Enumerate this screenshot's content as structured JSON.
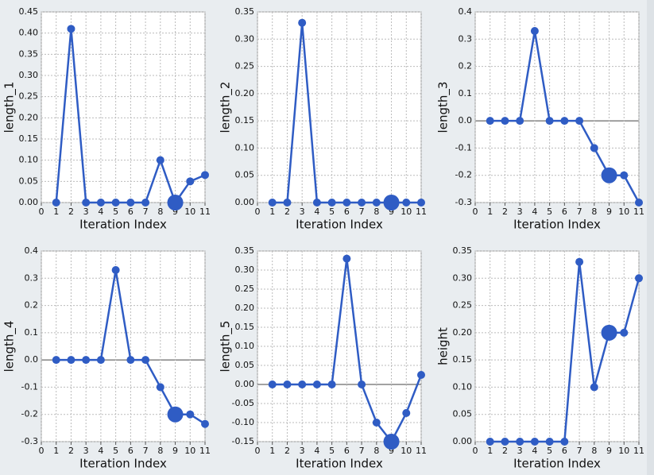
{
  "chart_data": [
    {
      "type": "line",
      "ylabel": "length_1",
      "xlabel": "Iteration Index",
      "color": "#2f5cc4",
      "grid": true,
      "highlight_x": 9,
      "x": [
        1,
        2,
        3,
        4,
        5,
        6,
        7,
        8,
        9,
        10,
        11
      ],
      "values": [
        0,
        0.41,
        0,
        0,
        0,
        0,
        0,
        0.1,
        0,
        0.05,
        0.065
      ],
      "xlim": [
        0,
        11
      ],
      "xticks": [
        0,
        1,
        2,
        3,
        4,
        5,
        6,
        7,
        8,
        9,
        10,
        11
      ],
      "ylim": [
        0,
        0.45
      ],
      "yticks": [
        {
          "value": 0,
          "label": "0.00"
        },
        {
          "value": 0.05,
          "label": "0.05"
        },
        {
          "value": 0.1,
          "label": "0.10"
        },
        {
          "value": 0.15,
          "label": "0.15"
        },
        {
          "value": 0.2,
          "label": "0.20"
        },
        {
          "value": 0.25,
          "label": "0.25"
        },
        {
          "value": 0.3,
          "label": "0.30"
        },
        {
          "value": 0.35,
          "label": "0.35"
        },
        {
          "value": 0.4,
          "label": "0.40"
        },
        {
          "value": 0.45,
          "label": "0.45"
        }
      ]
    },
    {
      "type": "line",
      "ylabel": "length_2",
      "xlabel": "Iteration Index",
      "color": "#2f5cc4",
      "grid": true,
      "highlight_x": 9,
      "x": [
        1,
        2,
        3,
        4,
        5,
        6,
        7,
        8,
        9,
        10,
        11
      ],
      "values": [
        0,
        0,
        0.33,
        0,
        0,
        0,
        0,
        0,
        0,
        0,
        0
      ],
      "xlim": [
        0,
        11
      ],
      "xticks": [
        0,
        1,
        2,
        3,
        4,
        5,
        6,
        7,
        8,
        9,
        10,
        11
      ],
      "ylim": [
        0,
        0.35
      ],
      "yticks": [
        {
          "value": 0,
          "label": "0.00"
        },
        {
          "value": 0.05,
          "label": "0.05"
        },
        {
          "value": 0.1,
          "label": "0.10"
        },
        {
          "value": 0.15,
          "label": "0.15"
        },
        {
          "value": 0.2,
          "label": "0.20"
        },
        {
          "value": 0.25,
          "label": "0.25"
        },
        {
          "value": 0.3,
          "label": "0.30"
        },
        {
          "value": 0.35,
          "label": "0.35"
        }
      ]
    },
    {
      "type": "line",
      "ylabel": "length_3",
      "xlabel": "Iteration Index",
      "color": "#2f5cc4",
      "grid": true,
      "highlight_x": 9,
      "x": [
        1,
        2,
        3,
        4,
        5,
        6,
        7,
        8,
        9,
        10,
        11
      ],
      "values": [
        0,
        0,
        0,
        0.33,
        0,
        0,
        0,
        -0.1,
        -0.2,
        -0.2,
        -0.3
      ],
      "xlim": [
        0,
        11
      ],
      "xticks": [
        0,
        1,
        2,
        3,
        4,
        5,
        6,
        7,
        8,
        9,
        10,
        11
      ],
      "ylim": [
        -0.3,
        0.4
      ],
      "yticks": [
        -0.3,
        -0.2,
        -0.1,
        {
          "value": 0,
          "label": "0.0"
        },
        0.1,
        0.2,
        0.3,
        0.4
      ]
    },
    {
      "type": "line",
      "ylabel": "length_4",
      "xlabel": "Iteration Index",
      "color": "#2f5cc4",
      "grid": true,
      "highlight_x": 9,
      "x": [
        1,
        2,
        3,
        4,
        5,
        6,
        7,
        8,
        9,
        10,
        11
      ],
      "values": [
        0,
        0,
        0,
        0,
        0.33,
        0,
        0,
        -0.1,
        -0.2,
        -0.2,
        -0.235
      ],
      "xlim": [
        0,
        11
      ],
      "xticks": [
        0,
        1,
        2,
        3,
        4,
        5,
        6,
        7,
        8,
        9,
        10,
        11
      ],
      "ylim": [
        -0.3,
        0.4
      ],
      "yticks": [
        -0.3,
        -0.2,
        -0.1,
        {
          "value": 0,
          "label": "0.0"
        },
        0.1,
        0.2,
        0.3,
        0.4
      ]
    },
    {
      "type": "line",
      "ylabel": "length_5",
      "xlabel": "Iteration Index",
      "color": "#2f5cc4",
      "grid": true,
      "highlight_x": 9,
      "x": [
        1,
        2,
        3,
        4,
        5,
        6,
        7,
        8,
        9,
        10,
        11
      ],
      "values": [
        0,
        0,
        0,
        0,
        0,
        0.33,
        0,
        -0.1,
        -0.15,
        -0.075,
        0.025
      ],
      "xlim": [
        0,
        11
      ],
      "xticks": [
        0,
        1,
        2,
        3,
        4,
        5,
        6,
        7,
        8,
        9,
        10,
        11
      ],
      "ylim": [
        -0.15,
        0.35
      ],
      "yticks": [
        {
          "value": -0.15,
          "label": "-0.15"
        },
        {
          "value": -0.1,
          "label": "-0.10"
        },
        {
          "value": -0.05,
          "label": "-0.05"
        },
        {
          "value": 0,
          "label": "0.00"
        },
        {
          "value": 0.05,
          "label": "0.05"
        },
        {
          "value": 0.1,
          "label": "0.10"
        },
        {
          "value": 0.15,
          "label": "0.15"
        },
        {
          "value": 0.2,
          "label": "0.20"
        },
        {
          "value": 0.25,
          "label": "0.25"
        },
        {
          "value": 0.3,
          "label": "0.30"
        },
        {
          "value": 0.35,
          "label": "0.35"
        }
      ]
    },
    {
      "type": "line",
      "ylabel": "height",
      "xlabel": "Iteration Index",
      "color": "#2f5cc4",
      "grid": true,
      "highlight_x": 9,
      "x": [
        1,
        2,
        3,
        4,
        5,
        6,
        7,
        8,
        9,
        10,
        11
      ],
      "values": [
        0,
        0,
        0,
        0,
        0,
        0,
        0.33,
        0.1,
        0.2,
        0.2,
        0.3
      ],
      "xlim": [
        0,
        11
      ],
      "xticks": [
        0,
        1,
        2,
        3,
        4,
        5,
        6,
        7,
        8,
        9,
        10,
        11
      ],
      "ylim": [
        0,
        0.35
      ],
      "yticks": [
        {
          "value": 0,
          "label": "0.00"
        },
        {
          "value": 0.05,
          "label": "0.05"
        },
        {
          "value": 0.1,
          "label": "0.10"
        },
        {
          "value": 0.15,
          "label": "0.15"
        },
        {
          "value": 0.2,
          "label": "0.20"
        },
        {
          "value": 0.25,
          "label": "0.25"
        },
        {
          "value": 0.3,
          "label": "0.30"
        },
        {
          "value": 0.35,
          "label": "0.35"
        }
      ]
    }
  ]
}
